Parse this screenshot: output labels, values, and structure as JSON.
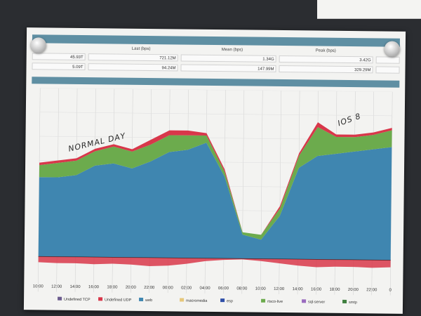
{
  "stats": {
    "headers": {
      "last": "Last (bps)",
      "mean": "Mean (bps)",
      "peak": "Peak (bps)"
    },
    "rows": [
      {
        "col1": "45.93T",
        "last": "721.12M",
        "mean": "1.34G",
        "peak": "3.42G"
      },
      {
        "col1": "5.09T",
        "last": "94.24M",
        "mean": "147.99M",
        "peak": "329.29M"
      }
    ]
  },
  "annotations": {
    "normal_day": "NORMAL DAY",
    "ios8": "IOS 8"
  },
  "colors": {
    "web": "#3f86b0",
    "green": "#6cab4d",
    "red": "#d8374a",
    "line": "#222222",
    "section_bar": "#5f8fa3"
  },
  "chart_data": {
    "type": "area",
    "x": [
      "10:00",
      "12:00",
      "14:00",
      "16:00",
      "18:00",
      "20:00",
      "22:00",
      "00:00",
      "02:00",
      "04:00",
      "06:00",
      "08:00",
      "10:00",
      "12:00",
      "14:00",
      "16:00",
      "18:00",
      "20:00",
      "22:00",
      "00:00"
    ],
    "x_ticks": [
      "10:00",
      "12:00",
      "14:00",
      "16:00",
      "18:00",
      "20:00",
      "22:00",
      "00:00",
      "02:00",
      "04:00",
      "06:00",
      "08:00",
      "10:00",
      "12:00",
      "14:00",
      "16:00",
      "18:00",
      "20:00",
      "22:00",
      "0"
    ],
    "series": [
      {
        "name": "web",
        "color": "#3f86b0",
        "values": [
          33,
          33,
          34,
          38,
          39,
          37,
          40,
          44,
          45,
          48,
          34,
          10,
          8,
          18,
          38,
          43,
          44,
          45,
          46,
          47
        ]
      },
      {
        "name": "rtsco-live",
        "color": "#6cab4d",
        "values": [
          5,
          6,
          6,
          6,
          7,
          7,
          7,
          7,
          6,
          3,
          2,
          1,
          2,
          3,
          5,
          12,
          7,
          6,
          6,
          7
        ]
      },
      {
        "name": "Undefined UDP",
        "color": "#d8374a",
        "values": [
          1,
          1,
          1,
          1,
          1,
          1,
          2,
          2,
          2,
          1,
          1,
          0,
          0,
          1,
          1,
          2,
          1,
          1,
          1,
          1
        ]
      }
    ],
    "legend": [
      "Undefined TCP",
      "Undefined UDP",
      "web",
      "macromedia",
      "esp",
      "rtsco-live",
      "sql-server",
      "smtp"
    ],
    "legend_colors": [
      "#6b5b8e",
      "#d8374a",
      "#3f86b0",
      "#e6c77a",
      "#2f4fa8",
      "#6cab4d",
      "#9a6bbf",
      "#3f7f3f"
    ],
    "legend_position": "bottom",
    "grid": true,
    "ylim": [
      0,
      70
    ]
  }
}
